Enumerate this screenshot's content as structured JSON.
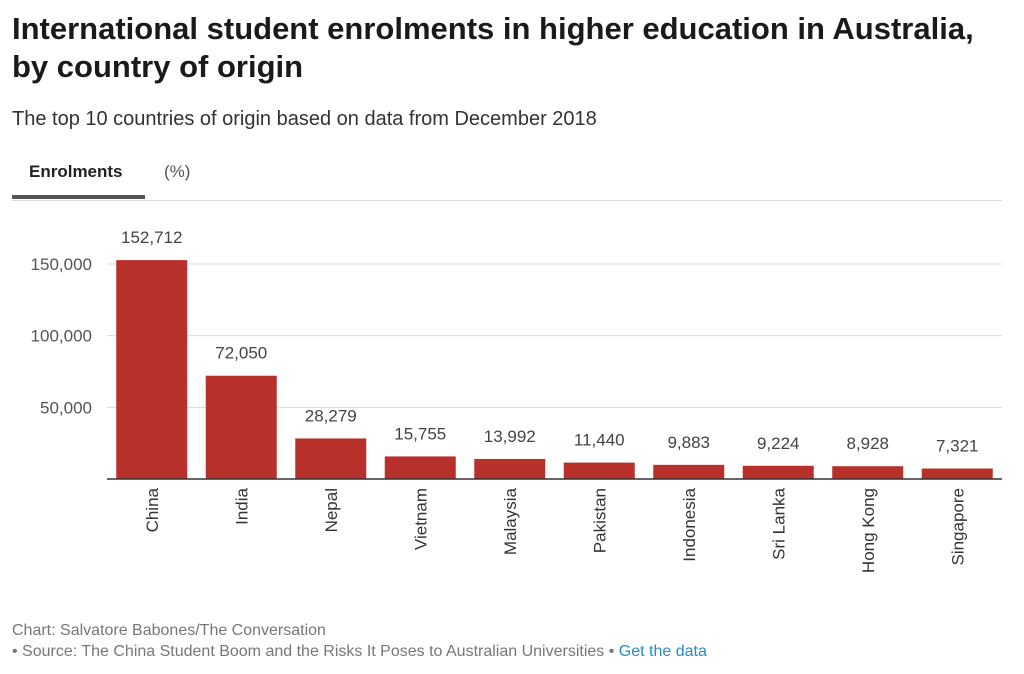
{
  "title": "International student enrolments in higher education in Australia, by country of origin",
  "subtitle": "The top 10 countries of origin based on data from December 2018",
  "tabs": [
    {
      "label": "Enrolments",
      "active": true
    },
    {
      "label": "(%)",
      "active": false
    }
  ],
  "chart_data": {
    "type": "bar",
    "title": "International student enrolments in higher education in Australia, by country of origin",
    "subtitle": "The top 10 countries of origin based on data from December 2018",
    "xlabel": "",
    "ylabel": "",
    "categories": [
      "China",
      "India",
      "Nepal",
      "Vietnam",
      "Malaysia",
      "Pakistan",
      "Indonesia",
      "Sri Lanka",
      "Hong Kong",
      "Singapore"
    ],
    "values": [
      152712,
      72050,
      28279,
      15755,
      13992,
      11440,
      9883,
      9224,
      8928,
      7321
    ],
    "value_labels": [
      "152,712",
      "72,050",
      "28,279",
      "15,755",
      "13,992",
      "11,440",
      "9,883",
      "9,224",
      "8,928",
      "7,321"
    ],
    "y_ticks": [
      50000,
      100000,
      150000
    ],
    "y_tick_labels": [
      "50,000",
      "100,000",
      "150,000"
    ],
    "ylim": [
      0,
      150000
    ],
    "grid": true,
    "legend": "none",
    "bar_color": "#b8302a"
  },
  "footer": {
    "credit": "Chart: Salvatore Babones/The Conversation",
    "source": "• Source: The China Student Boom and the Risks It Poses to Australian Universities •",
    "link": "Get the data"
  },
  "colors": {
    "bar": "#b8302a",
    "grid": "#d9d9d9",
    "axis": "#333333",
    "link": "#2b8cc4"
  }
}
